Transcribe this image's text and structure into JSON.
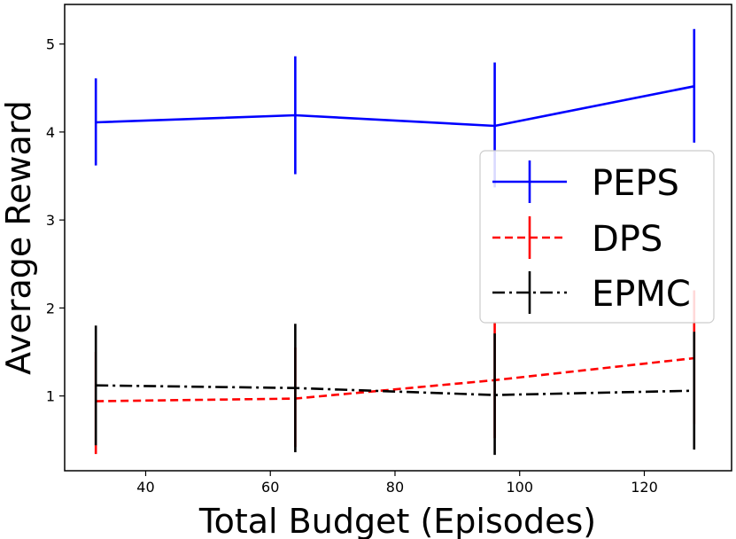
{
  "chart_data": {
    "type": "line",
    "xlabel": "Total Budget (Episodes)",
    "ylabel": "Average Reward",
    "xlim": [
      27,
      134
    ],
    "ylim": [
      0.15,
      5.45
    ],
    "xticks": [
      40,
      60,
      80,
      100,
      120
    ],
    "yticks": [
      1,
      2,
      3,
      4,
      5
    ],
    "grid": false,
    "legend_position": "center-right",
    "x": [
      32,
      64,
      96,
      128
    ],
    "series": [
      {
        "name": "PEPS",
        "color": "#0000ff",
        "style": "solid",
        "values": [
          4.11,
          4.19,
          4.07,
          4.52
        ],
        "err_low": [
          3.62,
          3.52,
          3.37,
          3.88
        ],
        "err_high": [
          4.61,
          4.86,
          4.79,
          5.17
        ]
      },
      {
        "name": "DPS",
        "color": "#ff0000",
        "style": "dashed",
        "values": [
          0.94,
          0.97,
          1.18,
          1.43
        ],
        "err_low": [
          0.34,
          0.42,
          0.52,
          0.68
        ],
        "err_high": [
          1.5,
          1.55,
          1.84,
          2.2
        ]
      },
      {
        "name": "EPMC",
        "color": "#000000",
        "style": "dashdot",
        "values": [
          1.12,
          1.09,
          1.01,
          1.06
        ],
        "err_low": [
          0.44,
          0.36,
          0.33,
          0.39
        ],
        "err_high": [
          1.8,
          1.82,
          1.71,
          1.73
        ]
      }
    ]
  }
}
